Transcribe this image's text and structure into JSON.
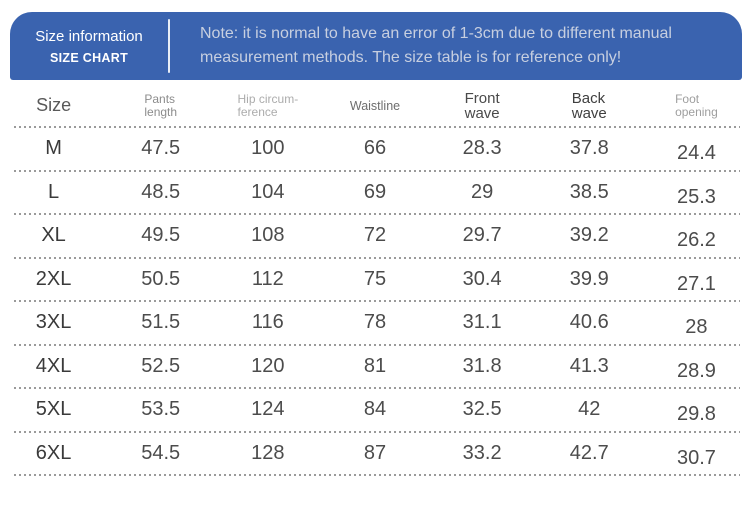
{
  "banner": {
    "title": "Size information",
    "subtitle": "SIZE CHART",
    "note": "Note: it is normal to have an error of 1-3cm due to different manual measurement methods. The size table is for reference only!",
    "bg_color": "#3a63af",
    "note_text_color": "#c7cfe0",
    "title_text_color": "#ffffff"
  },
  "table": {
    "columns": [
      {
        "l1": "Size",
        "l2": ""
      },
      {
        "l1": "Pants",
        "l2": "length"
      },
      {
        "l1": "Hip circum-",
        "l2": "ference"
      },
      {
        "l1": "Waistline",
        "l2": ""
      },
      {
        "l1": "Front",
        "l2": "wave"
      },
      {
        "l1": "Back",
        "l2": "wave"
      },
      {
        "l1": "Foot",
        "l2": "opening"
      }
    ],
    "rows": [
      {
        "size": "M",
        "values": [
          "47.5",
          "100",
          "66",
          "28.3",
          "37.8",
          "24.4"
        ]
      },
      {
        "size": "L",
        "values": [
          "48.5",
          "104",
          "69",
          "29",
          "38.5",
          "25.3"
        ]
      },
      {
        "size": "XL",
        "values": [
          "49.5",
          "108",
          "72",
          "29.7",
          "39.2",
          "26.2"
        ]
      },
      {
        "size": "2XL",
        "values": [
          "50.5",
          "112",
          "75",
          "30.4",
          "39.9",
          "27.1"
        ]
      },
      {
        "size": "3XL",
        "values": [
          "51.5",
          "116",
          "78",
          "31.1",
          "40.6",
          "28"
        ]
      },
      {
        "size": "4XL",
        "values": [
          "52.5",
          "120",
          "81",
          "31.8",
          "41.3",
          "28.9"
        ]
      },
      {
        "size": "5XL",
        "values": [
          "53.5",
          "124",
          "84",
          "32.5",
          "42",
          "29.8"
        ]
      },
      {
        "size": "6XL",
        "values": [
          "54.5",
          "128",
          "87",
          "33.2",
          "42.7",
          "30.7"
        ]
      }
    ]
  },
  "chart_data": {
    "type": "table",
    "title": "Size information / SIZE CHART",
    "note": "Note: it is normal to have an error of 1-3cm due to different manual measurement methods. The size table is for reference only!",
    "columns": [
      "Size",
      "Pants length",
      "Hip circumference",
      "Waistline",
      "Front wave",
      "Back wave",
      "Foot opening"
    ],
    "rows": [
      [
        "M",
        47.5,
        100,
        66,
        28.3,
        37.8,
        24.4
      ],
      [
        "L",
        48.5,
        104,
        69,
        29,
        38.5,
        25.3
      ],
      [
        "XL",
        49.5,
        108,
        72,
        29.7,
        39.2,
        26.2
      ],
      [
        "2XL",
        50.5,
        112,
        75,
        30.4,
        39.9,
        27.1
      ],
      [
        "3XL",
        51.5,
        116,
        78,
        31.1,
        40.6,
        28
      ],
      [
        "4XL",
        52.5,
        120,
        81,
        31.8,
        41.3,
        28.9
      ],
      [
        "5XL",
        53.5,
        124,
        84,
        32.5,
        42,
        29.8
      ],
      [
        "6XL",
        54.5,
        128,
        87,
        33.2,
        42.7,
        30.7
      ]
    ]
  }
}
